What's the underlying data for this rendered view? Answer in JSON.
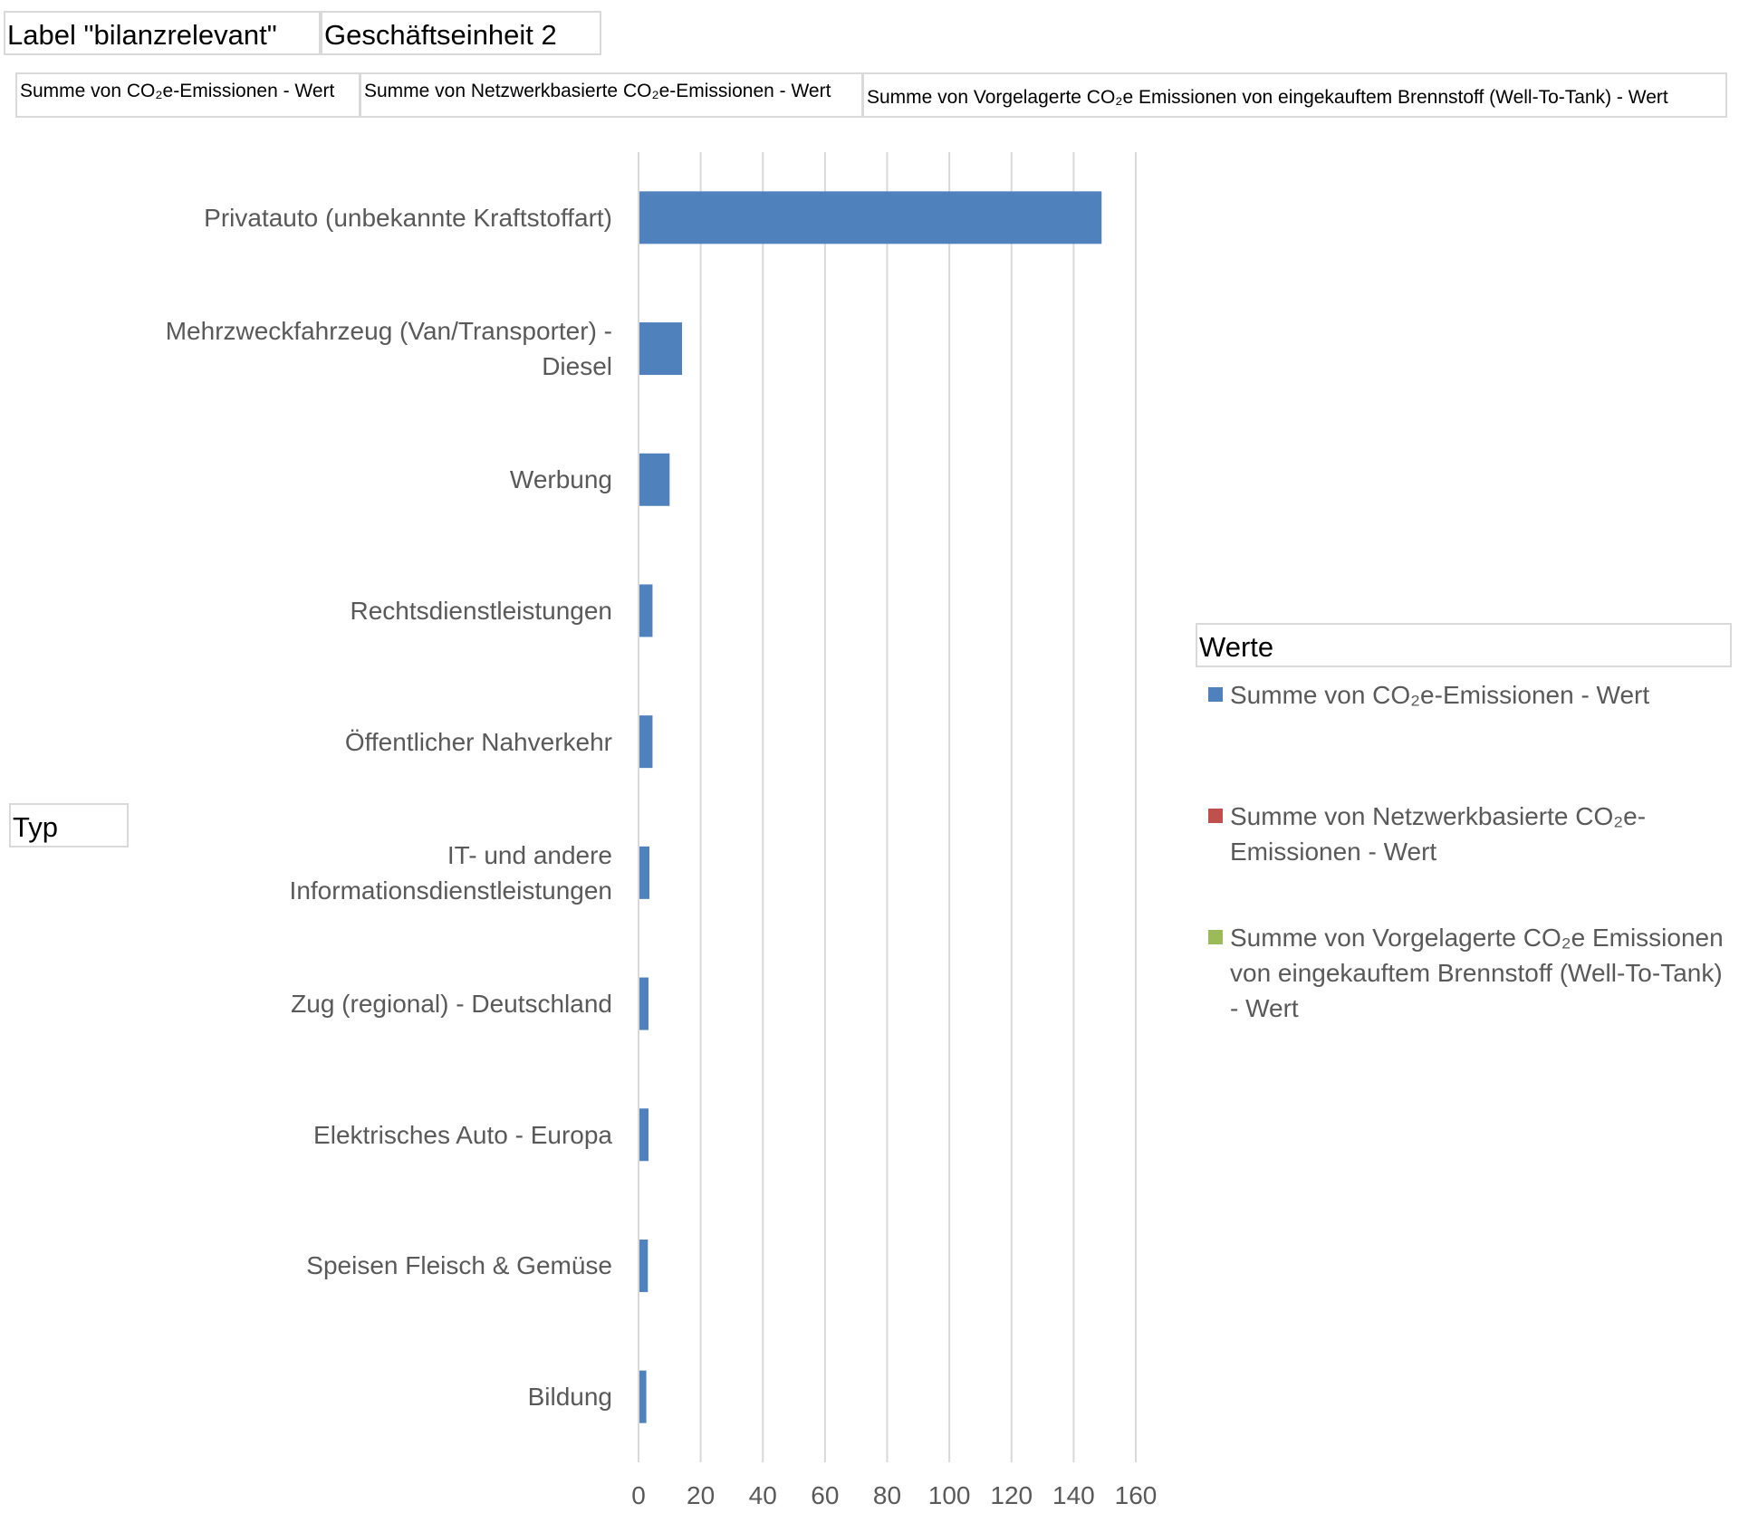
{
  "filter": {
    "field_label": "Label \"bilanzrelevant\"",
    "selected_value": "Geschäftseinheit 2"
  },
  "series_buttons": [
    "Summe von CO₂e-Emissionen - Wert",
    "Summe von Netzwerkbasierte CO₂e-Emissionen - Wert",
    "Summe von Vorgelagerte CO₂e Emissionen von eingekauftem Brennstoff (Well-To-Tank) - Wert"
  ],
  "axis_field": "Typ",
  "legend": {
    "title": "Werte",
    "items": [
      {
        "label": "Summe von CO₂e-Emissionen - Wert",
        "color": "#4f81bd"
      },
      {
        "label": "Summe von Netzwerkbasierte CO₂e-Emissionen - Wert",
        "color": "#c0504d"
      },
      {
        "label": "Summe von Vorgelagerte CO₂e Emissionen von eingekauftem Brennstoff (Well-To-Tank) - Wert",
        "color": "#9bbb59"
      }
    ]
  },
  "chart_data": {
    "type": "bar",
    "orientation": "horizontal",
    "categories": [
      "Privatauto (unbekannte Kraftstoffart)",
      "Mehrzweckfahrzeug (Van/Transporter) - Diesel",
      "Werbung",
      "Rechtsdienstleistungen",
      "Öffentlicher Nahverkehr",
      "IT- und andere Informationsdienstleistungen",
      "Zug (regional) - Deutschland",
      "Elektrisches Auto - Europa",
      "Speisen Fleisch & Gemüse",
      "Bildung"
    ],
    "series": [
      {
        "name": "Summe von CO₂e-Emissionen - Wert",
        "values": [
          149,
          14,
          10,
          4.5,
          4.5,
          3.5,
          3.2,
          3.2,
          3.0,
          2.5
        ]
      },
      {
        "name": "Summe von Netzwerkbasierte CO₂e-Emissionen - Wert",
        "values": [
          0,
          0,
          0,
          0,
          0,
          0,
          0,
          0,
          0,
          0
        ]
      },
      {
        "name": "Summe von Vorgelagerte CO₂e Emissionen von eingekauftem Brennstoff (Well-To-Tank) - Wert",
        "values": [
          0,
          0,
          0,
          0,
          0,
          0,
          0,
          0,
          0,
          0
        ]
      }
    ],
    "xticks": [
      0,
      20,
      40,
      60,
      80,
      100,
      120,
      140,
      160
    ],
    "xlim": [
      0,
      160
    ],
    "grid": true,
    "legend_position": "right",
    "title": "",
    "xlabel": "",
    "ylabel": ""
  }
}
